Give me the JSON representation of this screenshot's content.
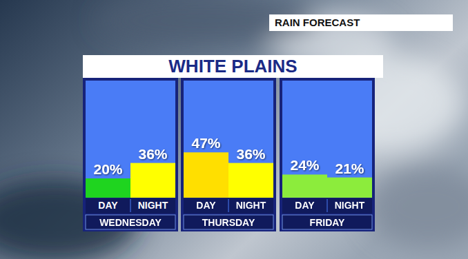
{
  "chart_data": {
    "type": "bar",
    "title": "WHITE PLAINS",
    "subtitle": "RAIN FORECAST",
    "groups": [
      "WEDNESDAY",
      "THURSDAY",
      "FRIDAY"
    ],
    "categories": [
      "DAY",
      "NIGHT",
      "DAY",
      "NIGHT",
      "DAY",
      "NIGHT"
    ],
    "values": [
      20,
      36,
      47,
      36,
      24,
      21
    ],
    "value_labels": [
      "20%",
      "36%",
      "47%",
      "36%",
      "24%",
      "21%"
    ],
    "colors": [
      "#1fd41f",
      "#ffff00",
      "#ffdf00",
      "#ffff00",
      "#8cec3c",
      "#8cec3c"
    ],
    "ylim": [
      0,
      100
    ],
    "data_labels": true,
    "tick_labels": "x"
  }
}
